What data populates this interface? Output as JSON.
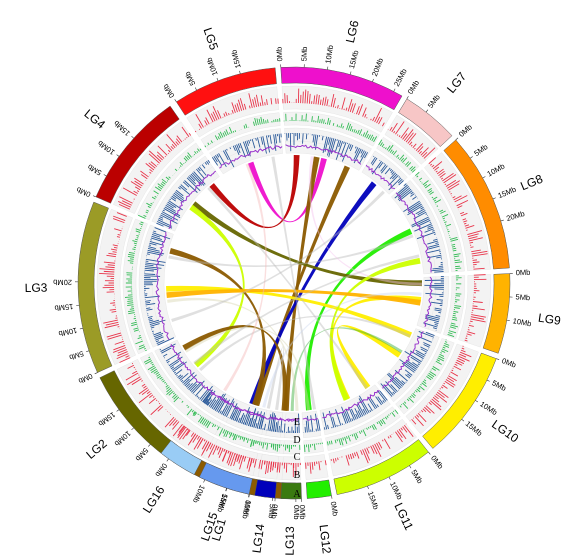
{
  "diagram": {
    "type": "circos",
    "chromosomes": [
      {
        "id": "LG1",
        "label": "LG1",
        "color": "#8b5a00",
        "ticks": [
          "0Mb",
          "5Mb",
          "10Mb",
          "15Mb"
        ]
      },
      {
        "id": "LG2",
        "label": "LG2",
        "color": "#666600",
        "ticks": [
          "0Mb",
          "5Mb",
          "10Mb",
          "15Mb"
        ]
      },
      {
        "id": "LG3",
        "label": "LG3",
        "color": "#9b9b26",
        "ticks": [
          "0Mb",
          "5Mb",
          "10Mb",
          "15Mb",
          "20Mb"
        ]
      },
      {
        "id": "LG4",
        "label": "LG4",
        "color": "#bb0000",
        "ticks": [
          "0Mb",
          "5Mb",
          "10Mb",
          "15Mb"
        ]
      },
      {
        "id": "LG5",
        "label": "LG5",
        "color": "#ff1010",
        "ticks": [
          "0Mb",
          "5Mb",
          "10Mb",
          "15Mb"
        ]
      },
      {
        "id": "LG6",
        "label": "LG6",
        "color": "#ee10cc",
        "ticks": [
          "0Mb",
          "5Mb",
          "10Mb",
          "15Mb",
          "20Mb",
          "25Mb"
        ]
      },
      {
        "id": "LG7",
        "label": "LG7",
        "color": "#f7c6c6",
        "ticks": [
          "0Mb",
          "5Mb"
        ]
      },
      {
        "id": "LG8",
        "label": "LG8",
        "color": "#ff8c00",
        "ticks": [
          "0Mb",
          "5Mb",
          "10Mb",
          "15Mb",
          "20Mb"
        ]
      },
      {
        "id": "LG9",
        "label": "LG9",
        "color": "#ffb300",
        "ticks": [
          "0Mb",
          "5Mb",
          "10Mb"
        ]
      },
      {
        "id": "LG10",
        "label": "LG10",
        "color": "#ffee00",
        "ticks": [
          "0Mb",
          "5Mb",
          "10Mb",
          "15Mb"
        ]
      },
      {
        "id": "LG11",
        "label": "LG11",
        "color": "#ccff00",
        "ticks": [
          "0Mb",
          "5Mb",
          "10Mb",
          "15Mb"
        ]
      },
      {
        "id": "LG12",
        "label": "LG12",
        "color": "#22ee00",
        "ticks": [
          "0Mb"
        ]
      },
      {
        "id": "LG13",
        "label": "LG13",
        "color": "#3a7a10",
        "ticks": [
          "0Mb",
          "5Mb"
        ]
      },
      {
        "id": "LG14",
        "label": "LG14",
        "color": "#0000bb",
        "ticks": [
          "0Mb"
        ]
      },
      {
        "id": "LG15",
        "label": "LG15",
        "color": "#6699ee",
        "ticks": [
          "0Mb",
          "5Mb",
          "10Mb"
        ]
      },
      {
        "id": "LG16",
        "label": "LG16",
        "color": "#99ccf5",
        "ticks": []
      }
    ],
    "tracks": [
      {
        "letter": "A",
        "name": "chromosomes"
      },
      {
        "letter": "B",
        "color": "#e8344a"
      },
      {
        "letter": "C",
        "color": "#33bb55"
      },
      {
        "letter": "D",
        "color": "#2b5a9a"
      },
      {
        "letter": "E",
        "color": "#9933cc"
      }
    ],
    "links": [
      {
        "from": "LG5",
        "to": "LG6",
        "color": "#ee10cc",
        "weight": "major"
      },
      {
        "from": "LG6",
        "to": "LG1",
        "color": "#8b5a00",
        "weight": "major"
      },
      {
        "from": "LG6",
        "to": "LG1",
        "color": "#8b5a00",
        "weight": "major"
      },
      {
        "from": "LG7",
        "to": "LG15",
        "color": "#0000bb",
        "weight": "major"
      },
      {
        "from": "LG8",
        "to": "LG12",
        "color": "#22ee00",
        "weight": "major"
      },
      {
        "from": "LG9",
        "to": "LG11",
        "color": "#ffee00",
        "weight": "major"
      },
      {
        "from": "LG10",
        "to": "LG11",
        "color": "#ffee00",
        "weight": "major"
      },
      {
        "from": "LG4",
        "to": "LG9",
        "color": "#666600",
        "weight": "major"
      },
      {
        "from": "LG4",
        "to": "LG6",
        "color": "#bb0000",
        "weight": "major"
      },
      {
        "from": "LG4",
        "to": "LG2",
        "color": "#ccff00",
        "weight": "major"
      },
      {
        "from": "LG3",
        "to": "LG10",
        "color": "#ffee00",
        "weight": "major"
      },
      {
        "from": "LG3",
        "to": "LG1",
        "color": "#8b5a00",
        "weight": "major"
      },
      {
        "from": "LG2",
        "to": "LG1",
        "color": "#8b5a00",
        "weight": "major"
      },
      {
        "from": "LG8",
        "to": "LG11",
        "color": "#ccff00",
        "weight": "major"
      },
      {
        "from": "LG3",
        "to": "LG9",
        "color": "#ffb300",
        "weight": "major"
      },
      {
        "from": "LG10",
        "to": "LG13",
        "color": "#33aa33",
        "weight": "minor"
      },
      {
        "from": "LG5",
        "to": "LG12",
        "color": "#bbbbbb",
        "weight": "minor"
      },
      {
        "from": "LG3",
        "to": "LG8",
        "color": "#bbbbbb",
        "weight": "minor"
      },
      {
        "from": "LG2",
        "to": "LG10",
        "color": "#bbbbbb",
        "weight": "minor"
      },
      {
        "from": "LG4",
        "to": "LG11",
        "color": "#bbbbbb",
        "weight": "minor"
      },
      {
        "from": "LG1",
        "to": "LG14",
        "color": "#bbbbbb",
        "weight": "minor"
      },
      {
        "from": "LG5",
        "to": "LG16",
        "color": "#f3b9b9",
        "weight": "minor"
      },
      {
        "from": "LG3",
        "to": "LG13",
        "color": "#d8d4b0",
        "weight": "minor"
      },
      {
        "from": "LG2",
        "to": "LG12",
        "color": "#d8d4b0",
        "weight": "minor"
      },
      {
        "from": "LG6",
        "to": "LG9",
        "color": "#f5c0ee",
        "weight": "minor"
      },
      {
        "from": "LG7",
        "to": "LG3",
        "color": "#bbbbbb",
        "weight": "minor"
      },
      {
        "from": "LG8",
        "to": "LG2",
        "color": "#bbbbbb",
        "weight": "minor"
      },
      {
        "from": "LG9",
        "to": "LG15",
        "color": "#cdd8f0",
        "weight": "minor"
      }
    ]
  }
}
